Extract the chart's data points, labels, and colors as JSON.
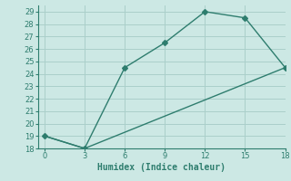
{
  "line1_x": [
    0,
    3,
    6,
    9,
    12,
    15,
    18
  ],
  "line1_y": [
    19,
    18,
    24.5,
    26.5,
    29,
    28.5,
    24.5
  ],
  "line2_x": [
    0,
    3,
    18
  ],
  "line2_y": [
    19,
    18,
    24.5
  ],
  "color": "#2e7d6e",
  "bg_color": "#cce8e4",
  "grid_color": "#aacfca",
  "xlabel": "Humidex (Indice chaleur)",
  "xlim": [
    -0.5,
    18
  ],
  "ylim": [
    18,
    29.5
  ],
  "xticks": [
    0,
    3,
    6,
    9,
    12,
    15,
    18
  ],
  "yticks": [
    18,
    19,
    20,
    21,
    22,
    23,
    24,
    25,
    26,
    27,
    28,
    29
  ],
  "marker": "D",
  "markersize": 3,
  "linewidth": 1.0
}
